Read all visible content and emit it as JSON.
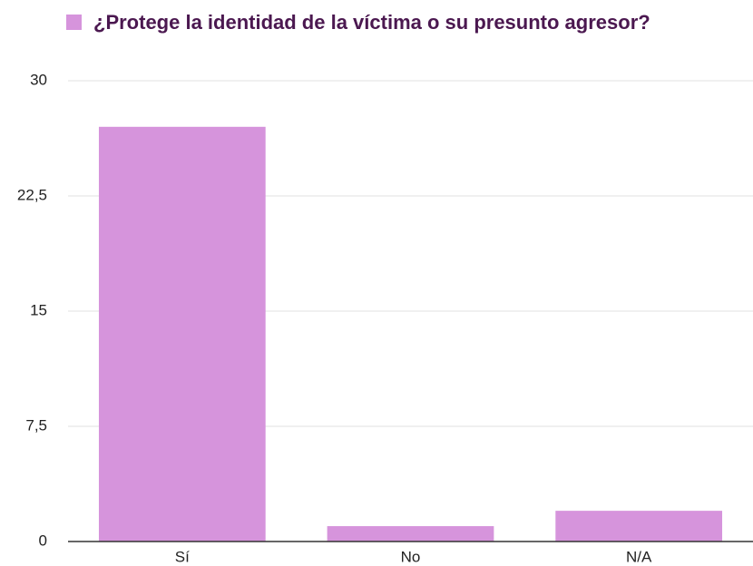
{
  "chart_data": {
    "type": "bar",
    "categories": [
      "Sí",
      "No",
      "N/A"
    ],
    "series": [
      {
        "name": "¿Protege la identidad de la víctima o su presunto agresor?",
        "color": "#d694dc",
        "values": [
          27,
          1,
          2
        ]
      }
    ],
    "ylim": [
      0,
      30
    ],
    "yticks": [
      0,
      {
        "value": 7.5,
        "label": "7,5"
      },
      15,
      {
        "value": 22.5,
        "label": "22,5"
      },
      30
    ],
    "grid": true
  }
}
